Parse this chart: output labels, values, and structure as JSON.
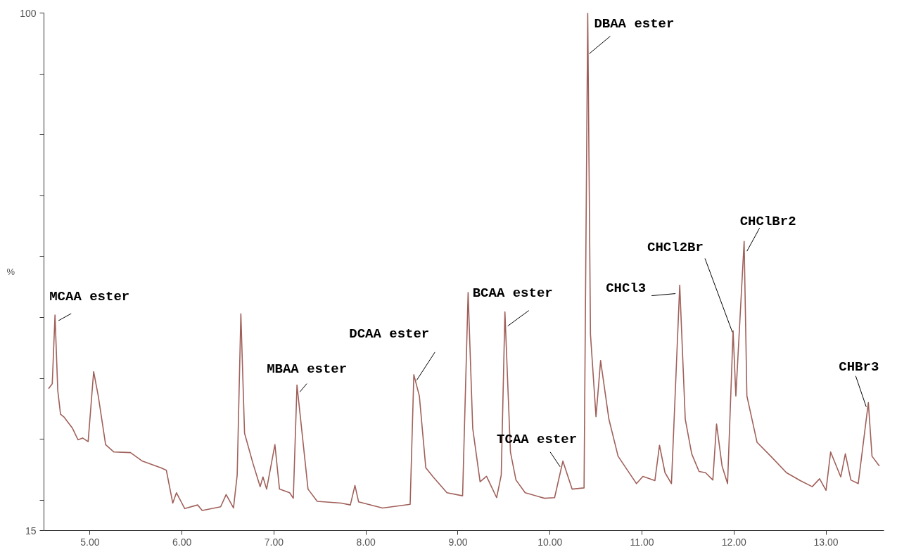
{
  "chart_data": {
    "type": "line",
    "ylabel": "%",
    "x": [
      4.55,
      4.59,
      4.62,
      4.65,
      4.68,
      4.72,
      4.81,
      4.87,
      4.92,
      4.98,
      5.04,
      5.09,
      5.17,
      5.26,
      5.44,
      5.57,
      5.77,
      5.83,
      5.9,
      5.94,
      6.03,
      6.17,
      6.22,
      6.42,
      6.48,
      6.56,
      6.6,
      6.64,
      6.68,
      6.77,
      6.85,
      6.88,
      6.92,
      7.01,
      7.06,
      7.17,
      7.21,
      7.25,
      7.37,
      7.47,
      7.73,
      7.83,
      7.88,
      7.92,
      8.18,
      8.48,
      8.52,
      8.58,
      8.65,
      8.73,
      8.88,
      9.05,
      9.11,
      9.16,
      9.24,
      9.31,
      9.42,
      9.47,
      9.51,
      9.57,
      9.63,
      9.73,
      9.94,
      10.05,
      10.14,
      10.24,
      10.37,
      10.41,
      10.44,
      10.5,
      10.55,
      10.64,
      10.74,
      10.94,
      11.01,
      11.14,
      11.19,
      11.25,
      11.32,
      11.41,
      11.47,
      11.54,
      11.62,
      11.69,
      11.77,
      11.81,
      11.87,
      11.93,
      11.99,
      12.02,
      12.11,
      12.14,
      12.25,
      12.4,
      12.57,
      12.72,
      12.85,
      12.93,
      13.0,
      13.05,
      13.16,
      13.21,
      13.27,
      13.35,
      13.46,
      13.5,
      13.58
    ],
    "series": [
      {
        "color": "#a0605a",
        "values": [
          38.3,
          39.1,
          50.4,
          38,
          34.1,
          33.6,
          31.8,
          29.9,
          30.2,
          29.6,
          41.1,
          37.1,
          29.1,
          27.9,
          27.8,
          26.4,
          25.3,
          24.9,
          19.5,
          21.2,
          18.6,
          19.2,
          18.3,
          18.9,
          20.9,
          18.7,
          24.1,
          50.6,
          31,
          26.1,
          22.2,
          23.8,
          21.8,
          29.1,
          21.8,
          21.2,
          20.3,
          38.9,
          21.8,
          19.8,
          19.5,
          19.2,
          22.4,
          19.7,
          18.7,
          19.3,
          40.6,
          37.1,
          25.3,
          23.8,
          21.2,
          20.7,
          54.1,
          31.8,
          23,
          23.9,
          20.4,
          24.1,
          50.9,
          27.9,
          23.3,
          21.2,
          20.3,
          20.4,
          26.4,
          21.8,
          22,
          100,
          47.2,
          33.7,
          42.9,
          33.3,
          27.2,
          22.7,
          23.9,
          23.2,
          29,
          24.5,
          22.7,
          55.3,
          33.3,
          27.6,
          24.7,
          24.5,
          23.3,
          32.5,
          25.6,
          22.7,
          47.8,
          37.1,
          62.5,
          37.1,
          29.5,
          27.2,
          24.5,
          23.2,
          22.2,
          23.5,
          21.6,
          27.9,
          23.8,
          27.6,
          23.3,
          22.7,
          36,
          27.2,
          25.6
        ]
      }
    ],
    "xlim": [
      4.5,
      13.63
    ],
    "xticks": [
      {
        "value": 5,
        "label": "5.00"
      },
      {
        "value": 6,
        "label": "6.00"
      },
      {
        "value": 7,
        "label": "7.00"
      },
      {
        "value": 8,
        "label": "8.00"
      },
      {
        "value": 9,
        "label": "9.00"
      },
      {
        "value": 10,
        "label": "10.00"
      },
      {
        "value": 11,
        "label": "11.00"
      },
      {
        "value": 12,
        "label": "12.00"
      },
      {
        "value": 13,
        "label": "13.00"
      }
    ],
    "ylim": [
      15,
      100
    ],
    "yticks": [
      15,
      {
        "value": 20,
        "label": null
      },
      {
        "value": 30,
        "label": null
      },
      {
        "value": 40,
        "label": null
      },
      {
        "value": 50,
        "label": null
      },
      {
        "value": 60,
        "label": null
      },
      {
        "value": 70,
        "label": null
      },
      {
        "value": 80,
        "label": null
      },
      {
        "value": 90,
        "label": null
      },
      100
    ],
    "grid": false,
    "marker": "none",
    "line_style": "solid",
    "annotations": [
      {
        "text": "MCAA ester",
        "x": 4.62,
        "y": 50.4
      },
      {
        "text": "MBAA ester",
        "x": 7.25,
        "y": 38.9
      },
      {
        "text": "DCAA ester",
        "x": 8.52,
        "y": 40.6
      },
      {
        "text": "BCAA ester",
        "x": 9.51,
        "y": 50.9
      },
      {
        "text": "TCAA ester",
        "x": 10.14,
        "y": 26.4
      },
      {
        "text": "DBAA ester",
        "x": 10.41,
        "y": 100
      },
      {
        "text": "CHCl3",
        "x": 11.41,
        "y": 55.3
      },
      {
        "text": "CHCl2Br",
        "x": 11.99,
        "y": 47.8
      },
      {
        "text": "CHClBr2",
        "x": 12.11,
        "y": 62.5
      },
      {
        "text": "CHBr3",
        "x": 13.46,
        "y": 36
      }
    ]
  }
}
